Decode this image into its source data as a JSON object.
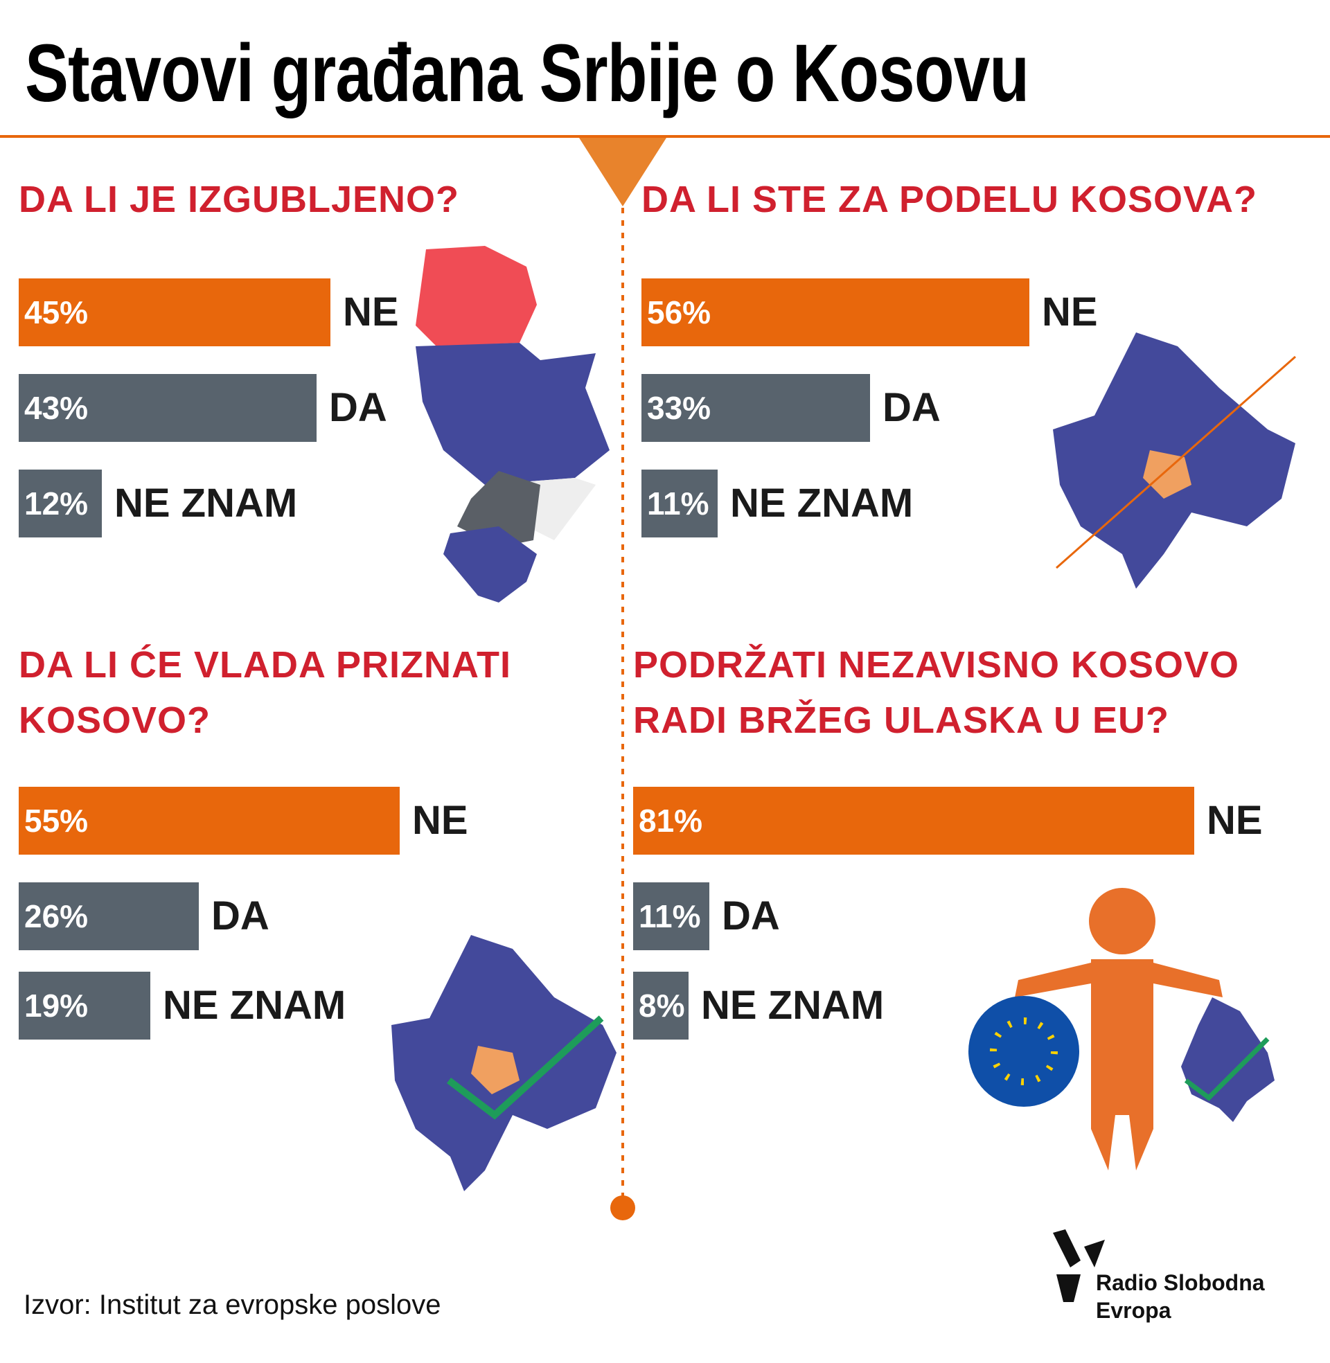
{
  "title": "Stavovi građana Srbije o Kosovu",
  "chart_data": [
    {
      "type": "bar",
      "title": "DA LI JE IZGUBLJENO?",
      "categories": [
        "NE",
        "DA",
        "NE ZNAM"
      ],
      "values": [
        45,
        43,
        12
      ],
      "value_labels": [
        "45%",
        "43%",
        "12%"
      ],
      "colors": [
        "#e8670c",
        "#58636d",
        "#58636d"
      ]
    },
    {
      "type": "bar",
      "title": "DA LI STE ZA PODELU KOSOVA?",
      "categories": [
        "NE",
        "DA",
        "NE ZNAM"
      ],
      "values": [
        56,
        33,
        11
      ],
      "value_labels": [
        "56%",
        "33%",
        "11%"
      ],
      "colors": [
        "#e8670c",
        "#58636d",
        "#58636d"
      ]
    },
    {
      "type": "bar",
      "title": "DA LI ĆE VLADA PRIZNATI KOSOVO?",
      "categories": [
        "NE",
        "DA",
        "NE ZNAM"
      ],
      "values": [
        55,
        26,
        19
      ],
      "value_labels": [
        "55%",
        "26%",
        "19%"
      ],
      "colors": [
        "#e8670c",
        "#58636d",
        "#58636d"
      ]
    },
    {
      "type": "bar",
      "title": "PODRŽATI NEZAVISNO KOSOVO RADI BRŽEG ULASKA U EU?",
      "categories": [
        "NE",
        "DA",
        "NE ZNAM"
      ],
      "values": [
        81,
        11,
        8
      ],
      "value_labels": [
        "81%",
        "11%",
        "8%"
      ],
      "colors": [
        "#e8670c",
        "#58636d",
        "#58636d"
      ]
    }
  ],
  "source": "Izvor: Institut za evropske poslove",
  "logo": [
    "Radio Slobodna",
    "Evropa"
  ]
}
